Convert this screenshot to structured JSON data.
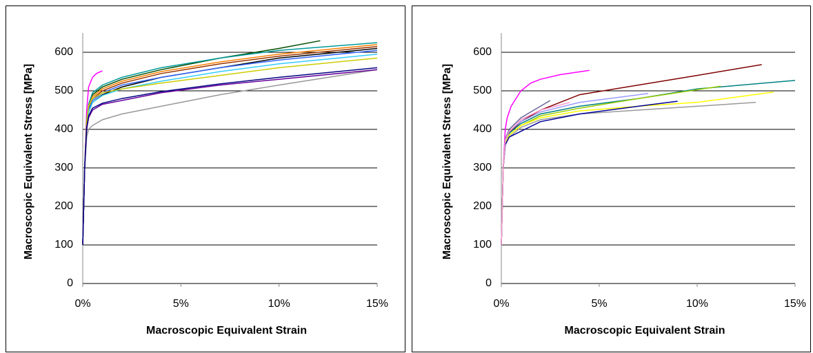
{
  "chart_data": [
    {
      "type": "line",
      "xlabel": "Macroscopic Equivalent Strain",
      "ylabel": "Macroscopic Equivalent Stress [MPa]",
      "xlim": [
        0,
        15
      ],
      "ylim": [
        0,
        650
      ],
      "xticks": [
        {
          "value": 0,
          "label": "0%"
        },
        {
          "value": 5,
          "label": "5%"
        },
        {
          "value": 10,
          "label": "10%"
        },
        {
          "value": 15,
          "label": "15%"
        }
      ],
      "yticks": [
        0,
        100,
        200,
        300,
        400,
        500,
        600
      ],
      "grid": true,
      "series": [
        {
          "color": "#ff00ff",
          "x": [
            0,
            0.1,
            0.2,
            0.3,
            0.5,
            0.7,
            1.0
          ],
          "values": [
            100,
            300,
            450,
            510,
            535,
            545,
            552
          ]
        },
        {
          "color": "#004d00",
          "x": [
            0,
            0.1,
            0.2,
            0.3,
            0.5,
            1,
            2,
            4,
            7,
            10,
            12.1
          ],
          "values": [
            100,
            300,
            420,
            460,
            490,
            510,
            530,
            555,
            585,
            610,
            630
          ]
        },
        {
          "color": "#009999",
          "x": [
            0,
            0.1,
            0.2,
            0.3,
            0.5,
            1,
            2,
            4,
            7,
            10,
            15
          ],
          "values": [
            100,
            300,
            425,
            465,
            495,
            515,
            535,
            560,
            585,
            605,
            625
          ]
        },
        {
          "color": "#ff8000",
          "x": [
            0,
            0.1,
            0.2,
            0.3,
            0.5,
            1,
            2,
            4,
            7,
            10,
            15
          ],
          "values": [
            100,
            300,
            420,
            460,
            485,
            505,
            525,
            550,
            575,
            595,
            620
          ]
        },
        {
          "color": "#993300",
          "x": [
            0,
            0.1,
            0.2,
            0.3,
            0.5,
            1,
            2,
            4,
            7,
            10,
            15
          ],
          "values": [
            100,
            300,
            415,
            455,
            480,
            500,
            520,
            545,
            570,
            590,
            615
          ]
        },
        {
          "color": "#000000",
          "x": [
            0,
            0.1,
            0.2,
            0.3,
            0.5,
            1,
            2,
            4,
            7,
            10,
            15
          ],
          "values": [
            100,
            300,
            410,
            445,
            470,
            490,
            510,
            535,
            560,
            585,
            610
          ]
        },
        {
          "color": "#3366ff",
          "x": [
            0,
            0.1,
            0.2,
            0.3,
            0.5,
            1,
            2,
            4,
            7,
            10,
            15
          ],
          "values": [
            100,
            300,
            415,
            450,
            475,
            495,
            515,
            535,
            560,
            580,
            605
          ]
        },
        {
          "color": "#33ccff",
          "x": [
            0,
            0.1,
            0.2,
            0.3,
            0.5,
            1,
            2,
            4,
            7,
            10,
            15
          ],
          "values": [
            100,
            300,
            410,
            445,
            470,
            488,
            505,
            525,
            550,
            570,
            595
          ]
        },
        {
          "color": "#cccc00",
          "x": [
            0,
            0.1,
            0.2,
            0.3,
            0.5,
            1,
            2,
            4,
            7,
            10,
            15
          ],
          "values": [
            100,
            300,
            420,
            460,
            480,
            495,
            505,
            520,
            540,
            560,
            585
          ]
        },
        {
          "color": "#999999",
          "x": [
            0,
            0.1,
            0.2,
            0.3,
            0.5,
            1,
            2,
            4,
            7,
            10,
            15
          ],
          "values": [
            100,
            300,
            380,
            400,
            410,
            425,
            440,
            460,
            490,
            515,
            555
          ]
        },
        {
          "color": "#660099",
          "x": [
            0,
            0.1,
            0.2,
            0.3,
            0.5,
            1,
            2,
            4,
            7,
            10,
            15
          ],
          "values": [
            100,
            300,
            400,
            430,
            450,
            465,
            475,
            495,
            515,
            530,
            555
          ]
        },
        {
          "color": "#000080",
          "x": [
            0,
            0.1,
            0.2,
            0.3,
            0.5,
            1,
            2,
            4,
            7,
            10,
            15
          ],
          "values": [
            100,
            300,
            405,
            435,
            455,
            468,
            480,
            498,
            518,
            535,
            560
          ]
        }
      ]
    },
    {
      "type": "line",
      "xlabel": "Macroscopic Equivalent Strain",
      "ylabel": "Macroscopic Equivalent Stress [MPa]",
      "xlim": [
        0,
        15
      ],
      "ylim": [
        0,
        650
      ],
      "xticks": [
        {
          "value": 0,
          "label": "0%"
        },
        {
          "value": 5,
          "label": "5%"
        },
        {
          "value": 10,
          "label": "10%"
        },
        {
          "value": 15,
          "label": "15%"
        }
      ],
      "yticks": [
        0,
        100,
        200,
        300,
        400,
        500,
        600
      ],
      "grid": true,
      "series": [
        {
          "color": "#ff00ff",
          "x": [
            0,
            0.1,
            0.2,
            0.3,
            0.5,
            1,
            1.5,
            2,
            3,
            4.5
          ],
          "values": [
            100,
            300,
            400,
            430,
            460,
            500,
            520,
            530,
            542,
            553
          ]
        },
        {
          "color": "#800000",
          "x": [
            0,
            0.1,
            0.2,
            0.4,
            1,
            2,
            4,
            7,
            10,
            13.3
          ],
          "values": [
            100,
            300,
            370,
            390,
            420,
            450,
            490,
            515,
            540,
            568
          ]
        },
        {
          "color": "#008080",
          "x": [
            0,
            0.1,
            0.2,
            0.4,
            1,
            2,
            4,
            7,
            10,
            15
          ],
          "values": [
            100,
            300,
            370,
            390,
            415,
            440,
            460,
            480,
            505,
            527
          ]
        },
        {
          "color": "#99cc00",
          "x": [
            0,
            0.1,
            0.2,
            0.4,
            1,
            2,
            4,
            7,
            11.2
          ],
          "values": [
            100,
            300,
            365,
            385,
            410,
            435,
            455,
            480,
            512
          ]
        },
        {
          "color": "#ffff00",
          "x": [
            0,
            0.1,
            0.2,
            0.4,
            1,
            2,
            4,
            7,
            10,
            13.9
          ],
          "values": [
            100,
            300,
            365,
            385,
            410,
            430,
            448,
            460,
            470,
            497
          ]
        },
        {
          "color": "#999999",
          "x": [
            0,
            0.1,
            0.2,
            0.4,
            1,
            2,
            4,
            7,
            10,
            13
          ],
          "values": [
            100,
            300,
            360,
            380,
            405,
            425,
            440,
            450,
            460,
            470
          ]
        },
        {
          "color": "#000099",
          "x": [
            0,
            0.1,
            0.2,
            0.4,
            1,
            2,
            4,
            7,
            9
          ],
          "values": [
            100,
            300,
            360,
            380,
            395,
            420,
            440,
            460,
            473
          ]
        },
        {
          "color": "#9999ff",
          "x": [
            0,
            0.1,
            0.2,
            0.4,
            1,
            2,
            4,
            7.5
          ],
          "values": [
            100,
            300,
            370,
            395,
            420,
            445,
            470,
            493
          ]
        },
        {
          "color": "#666699",
          "x": [
            0,
            0.1,
            0.2,
            0.4,
            1,
            2,
            2.5
          ],
          "values": [
            100,
            300,
            375,
            400,
            430,
            460,
            475
          ]
        },
        {
          "color": "#ff99cc",
          "x": [
            0,
            0.1,
            0.2,
            0.4,
            1,
            2,
            3.5
          ],
          "values": [
            100,
            300,
            372,
            395,
            425,
            450,
            470
          ]
        }
      ]
    }
  ]
}
